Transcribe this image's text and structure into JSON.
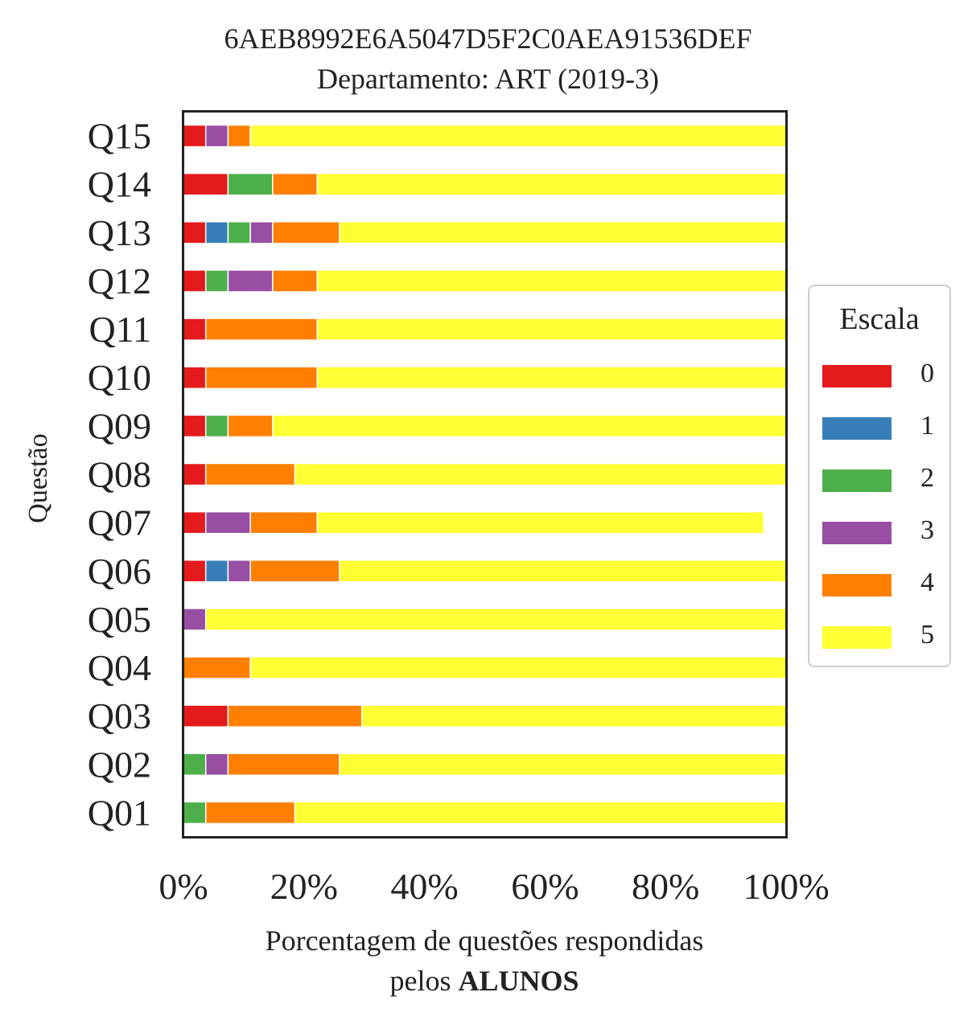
{
  "chart_data": {
    "type": "bar",
    "orientation": "horizontal",
    "stacked": true,
    "title": "6AEB8992E6A5047D5F2C0AEA91536DEF",
    "subtitle": "Departamento: ART (2019-3)",
    "xlabel_line1": "Porcentagem de questões respondidas",
    "xlabel_line2_prefix": "pelos",
    "xlabel_line2_bold": "ALUNOS",
    "ylabel": "Questão",
    "xlim": [
      0,
      100
    ],
    "x_ticks": [
      "0%",
      "20%",
      "40%",
      "60%",
      "80%",
      "100%"
    ],
    "x_tick_values": [
      0,
      20,
      40,
      60,
      80,
      100
    ],
    "grid": false,
    "categories": [
      "Q01",
      "Q02",
      "Q03",
      "Q04",
      "Q05",
      "Q06",
      "Q07",
      "Q08",
      "Q09",
      "Q10",
      "Q11",
      "Q12",
      "Q13",
      "Q14",
      "Q15"
    ],
    "legend": {
      "title": "Escala",
      "placement": "right"
    },
    "series": [
      {
        "name": "0",
        "color": "#e41a1c",
        "values": [
          0,
          0,
          7.4,
          0,
          0,
          3.7,
          3.7,
          3.7,
          3.7,
          3.7,
          3.7,
          3.7,
          3.7,
          7.4,
          3.7
        ]
      },
      {
        "name": "1",
        "color": "#377eb8",
        "values": [
          0,
          0,
          0,
          0,
          0,
          3.7,
          0,
          0,
          0,
          0,
          0,
          0,
          3.7,
          0,
          0
        ]
      },
      {
        "name": "2",
        "color": "#4daf4a",
        "values": [
          3.7,
          3.7,
          0,
          0,
          0,
          0,
          0,
          0,
          3.7,
          0,
          0,
          3.7,
          3.7,
          7.4,
          0
        ]
      },
      {
        "name": "3",
        "color": "#984ea3",
        "values": [
          0,
          3.7,
          0,
          0,
          3.7,
          3.7,
          7.4,
          0,
          0,
          0,
          0,
          7.4,
          3.7,
          0,
          3.7
        ]
      },
      {
        "name": "4",
        "color": "#ff7f00",
        "values": [
          14.8,
          18.5,
          22.2,
          11.1,
          0,
          14.8,
          11.1,
          14.8,
          7.4,
          18.5,
          18.5,
          7.4,
          11.1,
          7.4,
          3.7
        ]
      },
      {
        "name": "5",
        "color": "#ffff33",
        "values": [
          81.5,
          74.1,
          70.4,
          88.9,
          96.3,
          74.1,
          74.1,
          81.5,
          85.2,
          77.8,
          77.8,
          77.8,
          74.1,
          77.8,
          88.9
        ]
      }
    ]
  }
}
